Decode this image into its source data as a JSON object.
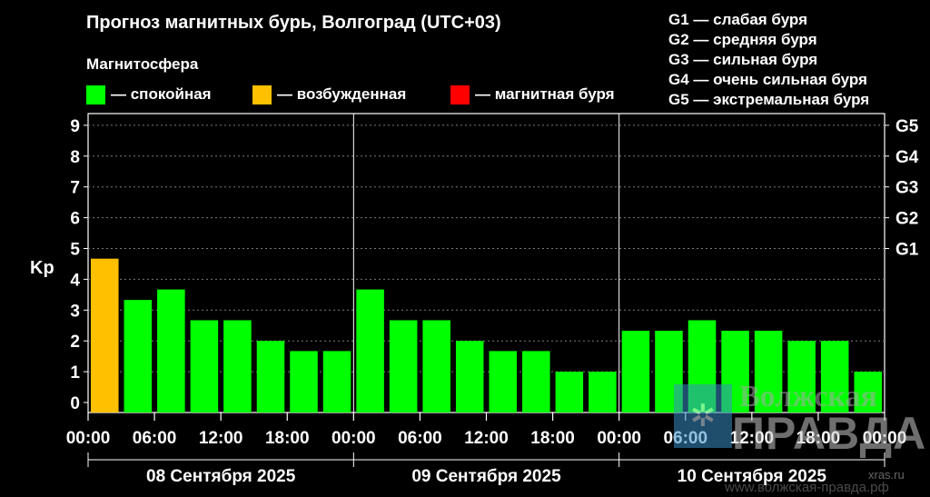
{
  "header": {
    "title": "Прогноз магнитных бурь, Волгоград (UTC+03)",
    "subtitle": "Магнитосфера"
  },
  "legend": [
    {
      "label": "— спокойная",
      "color": "#00ff00"
    },
    {
      "label": "— возбужденная",
      "color": "#ffc000"
    },
    {
      "label": "— магнитная буря",
      "color": "#ff0000"
    }
  ],
  "storm_levels": [
    "G1 — слабая буря",
    "G2 — средняя буря",
    "G3 — сильная буря",
    "G4 — очень сильная буря",
    "G5 — экстремальная буря"
  ],
  "chart_data": {
    "type": "bar",
    "ylabel": "Kp",
    "ylim": [
      0,
      9
    ],
    "yticks": [
      0,
      1,
      2,
      3,
      4,
      5,
      6,
      7,
      8,
      9
    ],
    "right_ticks": [
      {
        "label": "G1",
        "value": 5
      },
      {
        "label": "G2",
        "value": 6
      },
      {
        "label": "G3",
        "value": 7
      },
      {
        "label": "G4",
        "value": 8
      },
      {
        "label": "G5",
        "value": 9
      }
    ],
    "grid": true,
    "xtick_labels": [
      "00:00",
      "06:00",
      "12:00",
      "18:00",
      "00:00",
      "06:00",
      "12:00",
      "18:00",
      "00:00",
      "06:00",
      "12:00",
      "18:00",
      "00:00"
    ],
    "days": [
      "08 Сентября 2025",
      "09 Сентября 2025",
      "10 Сентября 2025"
    ],
    "values": [
      4.67,
      3.33,
      3.67,
      2.67,
      2.67,
      2.0,
      1.67,
      1.67,
      3.67,
      2.67,
      2.67,
      2.0,
      1.67,
      1.67,
      1.0,
      1.0,
      2.33,
      2.33,
      2.67,
      2.33,
      2.33,
      2.0,
      2.0,
      1.0
    ],
    "colors": [
      "#ffc000",
      "#00ff00",
      "#00ff00",
      "#00ff00",
      "#00ff00",
      "#00ff00",
      "#00ff00",
      "#00ff00",
      "#00ff00",
      "#00ff00",
      "#00ff00",
      "#00ff00",
      "#00ff00",
      "#00ff00",
      "#00ff00",
      "#00ff00",
      "#00ff00",
      "#00ff00",
      "#00ff00",
      "#00ff00",
      "#00ff00",
      "#00ff00",
      "#00ff00",
      "#00ff00"
    ]
  },
  "watermark": {
    "emblem": "✲",
    "line1": "Волжская",
    "line2": "ПРАВДА",
    "line3": "xras.ru",
    "line4": "www.волжская-правда.рф"
  }
}
